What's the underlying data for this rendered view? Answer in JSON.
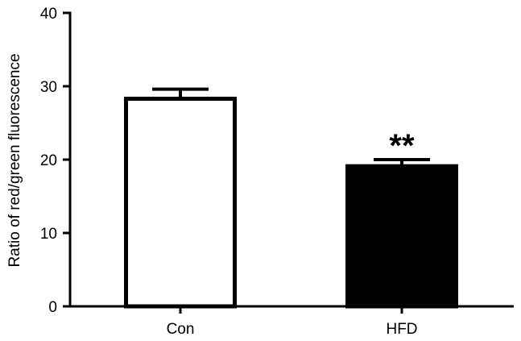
{
  "chart_data": {
    "type": "bar",
    "categories": [
      "Con",
      "HFD"
    ],
    "values": [
      28.3,
      19.1
    ],
    "errors": [
      1.3,
      0.9
    ],
    "bar_fills": [
      "#ffffff",
      "#000000"
    ],
    "bar_stroke": "#000000",
    "annotations": [
      "",
      "**"
    ],
    "title": "",
    "xlabel": "",
    "ylabel": "Ratio of red/green fluorescence",
    "ylim": [
      0,
      40
    ],
    "yticks": [
      0,
      10,
      20,
      30,
      40
    ],
    "grid": false
  }
}
